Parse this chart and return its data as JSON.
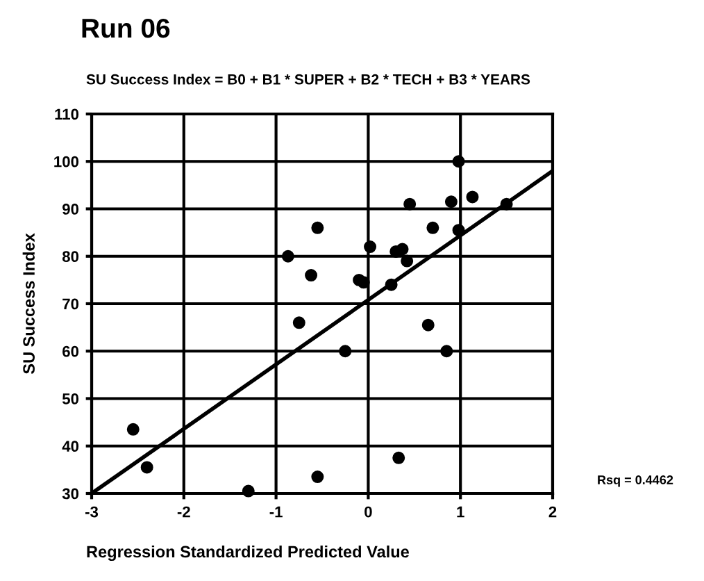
{
  "chart_data": {
    "type": "scatter",
    "title": "Run 06",
    "subtitle": "SU Success Index = B0 + B1 * SUPER + B2 * TECH + B3 * YEARS",
    "xlabel": "Regression Standardized Predicted Value",
    "ylabel": "SU Success Index",
    "x": [
      -2.55,
      -2.4,
      -1.3,
      -0.55,
      -0.55,
      -0.87,
      -0.75,
      -0.62,
      -0.25,
      -0.1,
      -0.05,
      0.02,
      0.25,
      0.3,
      0.37,
      0.42,
      0.33,
      0.45,
      0.7,
      0.65,
      0.85,
      0.9,
      0.98,
      0.98,
      1.13,
      1.5
    ],
    "series": [
      {
        "color": "#000000",
        "values": [
          43.5,
          35.5,
          30.5,
          33.5,
          86,
          80,
          66,
          76,
          60,
          75,
          74.5,
          82,
          74,
          81,
          81.5,
          79,
          37.5,
          91,
          86,
          65.5,
          60,
          91.5,
          100,
          85.5,
          92.5,
          91
        ]
      },
      {
        "type": "line",
        "marker": "none",
        "color": "#000000",
        "x": [
          -3,
          2
        ],
        "values": [
          30,
          98
        ]
      }
    ],
    "xlim": [
      -3,
      2
    ],
    "xticks": [
      -3,
      -2,
      -1,
      0,
      1,
      2
    ],
    "ylim": [
      30,
      110
    ],
    "yticks": [
      30,
      40,
      50,
      60,
      70,
      80,
      90,
      100,
      110
    ],
    "grid": true,
    "marker": "circle",
    "annotations": [
      "Rsq = 0.4462"
    ]
  }
}
